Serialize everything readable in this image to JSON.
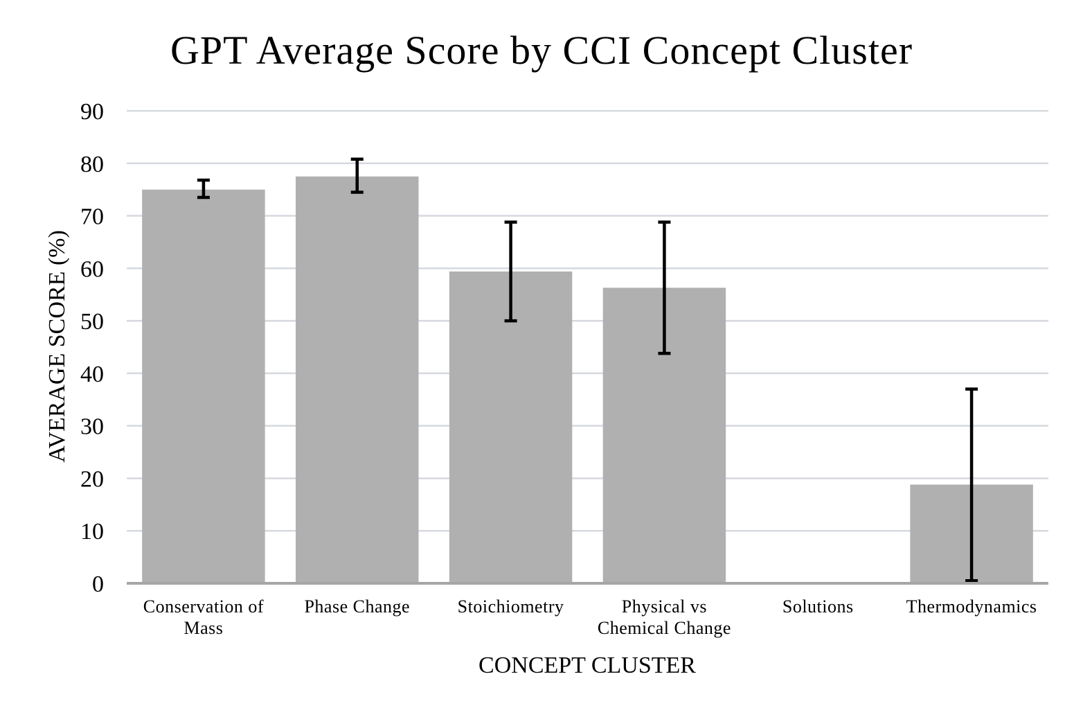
{
  "chart_data": {
    "type": "bar",
    "title": "GPT Average Score by CCI Concept Cluster",
    "xlabel": "CONCEPT CLUSTER",
    "ylabel": "AVERAGE SCORE (%)",
    "ylim": [
      0,
      90
    ],
    "yticks": [
      "0",
      "10",
      "20",
      "30",
      "40",
      "50",
      "60",
      "70",
      "80",
      "90"
    ],
    "grid": true,
    "categories": [
      [
        "Conservation of",
        "Mass"
      ],
      [
        "Phase Change"
      ],
      [
        "Stoichiometry"
      ],
      [
        "Physical vs",
        "Chemical Change"
      ],
      [
        "Solutions"
      ],
      [
        "Thermodynamics"
      ]
    ],
    "values": [
      75,
      77.5,
      59.4,
      56.3,
      0,
      18.8
    ],
    "error_low": [
      73.5,
      74.5,
      50.0,
      43.8,
      0,
      0.5
    ],
    "error_high": [
      76.8,
      80.8,
      68.8,
      68.8,
      0,
      37.0
    ],
    "colors": {
      "bar": "#b0b0b0",
      "error": "#000000",
      "grid": "#d5d9df"
    }
  }
}
